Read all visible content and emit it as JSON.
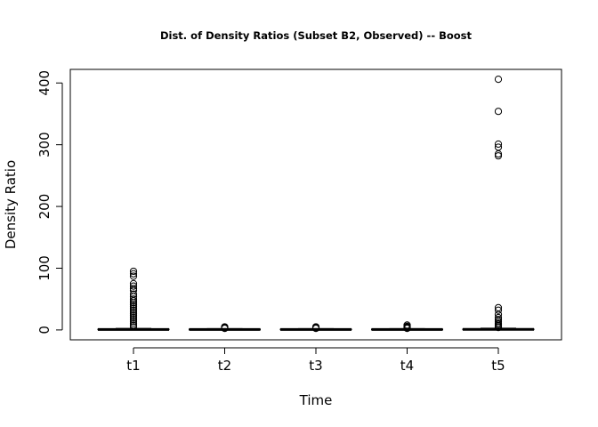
{
  "chart_data": {
    "type": "boxplot",
    "title": "Dist. of Density Ratios (Subset B2, Observed) -- Boost",
    "xlabel": "Time",
    "ylabel": "Density Ratio",
    "categories": [
      "t1",
      "t2",
      "t3",
      "t4",
      "t5"
    ],
    "ylim": [
      -16,
      422
    ],
    "yticks": [
      0,
      100,
      200,
      300,
      400
    ],
    "grid": false,
    "boxes": [
      {
        "name": "t1",
        "whisker_low": 0,
        "q1": 0.4,
        "median": 0.8,
        "q3": 1.3,
        "whisker_high": 2.5,
        "outliers": [
          95,
          91,
          87,
          75,
          71,
          67,
          64,
          58,
          54,
          50,
          47,
          44,
          41,
          38,
          35,
          32,
          29,
          26,
          23,
          20,
          17,
          14,
          11,
          8,
          5
        ]
      },
      {
        "name": "t2",
        "whisker_low": 0,
        "q1": 0.4,
        "median": 0.8,
        "q3": 1.2,
        "whisker_high": 2.2,
        "outliers": [
          5,
          4,
          3,
          2.5
        ]
      },
      {
        "name": "t3",
        "whisker_low": 0,
        "q1": 0.4,
        "median": 0.8,
        "q3": 1.2,
        "whisker_high": 2.2,
        "outliers": [
          5,
          4,
          3,
          2.5
        ]
      },
      {
        "name": "t4",
        "whisker_low": 0,
        "q1": 0.4,
        "median": 0.8,
        "q3": 1.2,
        "whisker_high": 2.2,
        "outliers": [
          8,
          6,
          5,
          4,
          3,
          2.5
        ]
      },
      {
        "name": "t5",
        "whisker_low": 0,
        "q1": 0.4,
        "median": 0.9,
        "q3": 1.4,
        "whisker_high": 3,
        "outliers": [
          406,
          354,
          301,
          296,
          285,
          282,
          36,
          32,
          25,
          20,
          17,
          14,
          11,
          9,
          7,
          5,
          4
        ]
      }
    ]
  }
}
